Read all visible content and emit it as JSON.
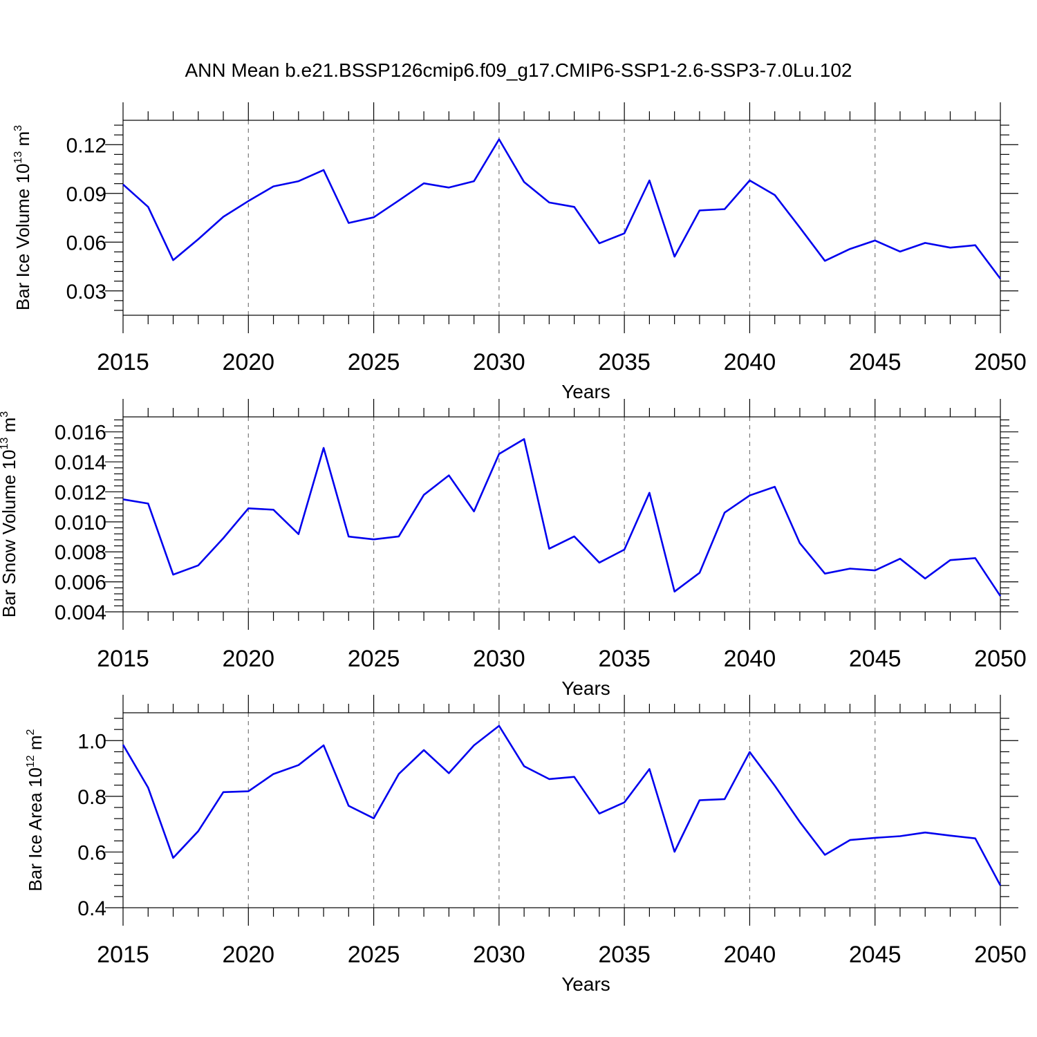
{
  "title": "ANN Mean b.e21.BSSP126cmip6.f09_g17.CMIP6-SSP1-2.6-SSP3-7.0Lu.102",
  "chart_data": [
    {
      "type": "line",
      "ylabel_main": "Bar Ice Volume 10",
      "ylabel_exp": "13",
      "ylabel_unit": " m",
      "ylabel_unit_exp": "3",
      "xlabel": "Years",
      "xlim": [
        2015,
        2050
      ],
      "ylim": [
        0.015,
        0.135
      ],
      "yticks": [
        0.03,
        0.06,
        0.09,
        0.12
      ],
      "ytick_labels": [
        "0.03",
        "0.06",
        "0.09",
        "0.12"
      ],
      "xticks": [
        2015,
        2020,
        2025,
        2030,
        2035,
        2040,
        2045,
        2050
      ],
      "xtick_labels": [
        "2015",
        "2020",
        "2025",
        "2030",
        "2035",
        "2040",
        "2045",
        "2050"
      ],
      "color": "#0000ee",
      "grid": "vertical dashed at major x ticks",
      "x": [
        2015,
        2016,
        2017,
        2018,
        2019,
        2020,
        2021,
        2022,
        2023,
        2024,
        2025,
        2026,
        2027,
        2028,
        2029,
        2030,
        2031,
        2032,
        2033,
        2034,
        2035,
        2036,
        2037,
        2038,
        2039,
        2040,
        2041,
        2042,
        2043,
        2044,
        2045,
        2046,
        2047,
        2048,
        2049,
        2050
      ],
      "y": [
        0.0955,
        0.0817,
        0.0489,
        0.0618,
        0.0756,
        0.0853,
        0.0943,
        0.0975,
        0.1044,
        0.0718,
        0.0753,
        0.0856,
        0.0962,
        0.0936,
        0.0975,
        0.1233,
        0.097,
        0.0844,
        0.0817,
        0.0593,
        0.0654,
        0.098,
        0.0511,
        0.0795,
        0.0803,
        0.098,
        0.089,
        0.069,
        0.0485,
        0.0558,
        0.061,
        0.0542,
        0.0595,
        0.0566,
        0.0581,
        0.0375
      ]
    },
    {
      "type": "line",
      "ylabel_main": "Bar Snow Volume 10",
      "ylabel_exp": "13",
      "ylabel_unit": " m",
      "ylabel_unit_exp": "3",
      "xlabel": "Years",
      "xlim": [
        2015,
        2050
      ],
      "ylim": [
        0.004,
        0.017
      ],
      "yticks": [
        0.004,
        0.006,
        0.008,
        0.01,
        0.012,
        0.014,
        0.016
      ],
      "ytick_labels": [
        "0.004",
        "0.006",
        "0.008",
        "0.010",
        "0.012",
        "0.014",
        "0.016"
      ],
      "xticks": [
        2015,
        2020,
        2025,
        2030,
        2035,
        2040,
        2045,
        2050
      ],
      "xtick_labels": [
        "2015",
        "2020",
        "2025",
        "2030",
        "2035",
        "2040",
        "2045",
        "2050"
      ],
      "color": "#0000ee",
      "grid": "vertical dashed at major x ticks",
      "x": [
        2015,
        2016,
        2017,
        2018,
        2019,
        2020,
        2021,
        2022,
        2023,
        2024,
        2025,
        2026,
        2027,
        2028,
        2029,
        2030,
        2031,
        2032,
        2033,
        2034,
        2035,
        2036,
        2037,
        2038,
        2039,
        2040,
        2041,
        2042,
        2043,
        2044,
        2045,
        2046,
        2047,
        2048,
        2049,
        2050
      ],
      "y": [
        0.0115,
        0.01122,
        0.00648,
        0.0071,
        0.00891,
        0.0109,
        0.01081,
        0.00918,
        0.01493,
        0.00902,
        0.00883,
        0.00903,
        0.0118,
        0.0131,
        0.0107,
        0.01453,
        0.01552,
        0.00821,
        0.00903,
        0.00728,
        0.00815,
        0.01194,
        0.00535,
        0.0066,
        0.01062,
        0.01176,
        0.01234,
        0.00858,
        0.00655,
        0.00688,
        0.00676,
        0.00754,
        0.00622,
        0.00745,
        0.00758,
        0.00505
      ]
    },
    {
      "type": "line",
      "ylabel_main": "Bar Ice Area 10",
      "ylabel_exp": "12",
      "ylabel_unit": " m",
      "ylabel_unit_exp": "2",
      "xlabel": "Years",
      "xlim": [
        2015,
        2050
      ],
      "ylim": [
        0.4,
        1.1
      ],
      "yticks": [
        0.4,
        0.6,
        0.8,
        1.0
      ],
      "ytick_labels": [
        "0.4",
        "0.6",
        "0.8",
        "1.0"
      ],
      "xticks": [
        2015,
        2020,
        2025,
        2030,
        2035,
        2040,
        2045,
        2050
      ],
      "xtick_labels": [
        "2015",
        "2020",
        "2025",
        "2030",
        "2035",
        "2040",
        "2045",
        "2050"
      ],
      "color": "#0000ee",
      "grid": "vertical dashed at major x ticks",
      "x": [
        2015,
        2016,
        2017,
        2018,
        2019,
        2020,
        2021,
        2022,
        2023,
        2024,
        2025,
        2026,
        2027,
        2028,
        2029,
        2030,
        2031,
        2032,
        2033,
        2034,
        2035,
        2036,
        2037,
        2038,
        2039,
        2040,
        2041,
        2042,
        2043,
        2044,
        2045,
        2046,
        2047,
        2048,
        2049,
        2050
      ],
      "y": [
        0.985,
        0.831,
        0.579,
        0.675,
        0.815,
        0.818,
        0.88,
        0.912,
        0.983,
        0.766,
        0.721,
        0.88,
        0.966,
        0.883,
        0.983,
        1.053,
        0.908,
        0.862,
        0.87,
        0.738,
        0.778,
        0.898,
        0.601,
        0.786,
        0.79,
        0.959,
        0.838,
        0.708,
        0.59,
        0.643,
        0.651,
        0.657,
        0.67,
        0.659,
        0.649,
        0.48
      ]
    }
  ]
}
